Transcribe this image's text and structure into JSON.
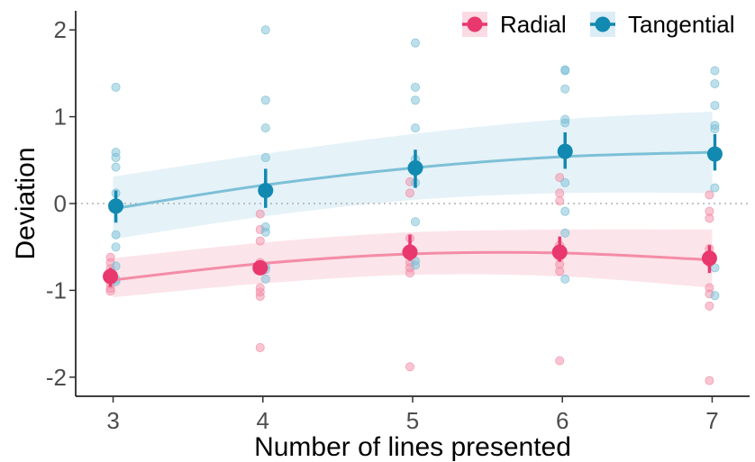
{
  "chart_data": {
    "type": "line",
    "xlabel": "Number of lines presented",
    "ylabel": "Deviation",
    "x_ticks": [
      3,
      4,
      5,
      6,
      7
    ],
    "y_ticks": [
      -2,
      -1,
      0,
      1,
      2
    ],
    "xlim": [
      2.75,
      7.25
    ],
    "ylim": [
      -2.22,
      2.22
    ],
    "reference_line_y": 0,
    "grid": false,
    "legend_position": "top-right",
    "series": [
      {
        "name": "Radial",
        "color": "#E8386D",
        "light_color": "#F48CA6",
        "band_color": "#FADBE3",
        "x": [
          3,
          4,
          5,
          6,
          7
        ],
        "mean": [
          -0.84,
          -0.74,
          -0.56,
          -0.56,
          -0.63
        ],
        "err_low": [
          -0.96,
          -0.82,
          -0.66,
          -0.67,
          -0.8
        ],
        "err_high": [
          -0.74,
          -0.67,
          -0.36,
          -0.38,
          -0.48
        ],
        "fit": [
          -0.88,
          -0.69,
          -0.58,
          -0.57,
          -0.65
        ],
        "band_low": [
          -1.08,
          -0.92,
          -0.82,
          -0.84,
          -0.97
        ],
        "band_high": [
          -0.63,
          -0.45,
          -0.33,
          -0.3,
          -0.3
        ],
        "points": [
          [
            3,
            -0.62
          ],
          [
            3,
            -0.68
          ],
          [
            3,
            -0.75
          ],
          [
            3,
            -0.82
          ],
          [
            3,
            -0.88
          ],
          [
            3,
            -0.93
          ],
          [
            3,
            -0.98
          ],
          [
            3,
            -1.01
          ],
          [
            4,
            -0.12
          ],
          [
            4,
            -0.3
          ],
          [
            4,
            -0.43
          ],
          [
            4,
            -0.68
          ],
          [
            4,
            -0.73
          ],
          [
            4,
            -0.97
          ],
          [
            4,
            -1.02
          ],
          [
            4,
            -1.07
          ],
          [
            4,
            -1.66
          ],
          [
            5,
            0.25
          ],
          [
            5,
            0.12
          ],
          [
            5,
            -0.4
          ],
          [
            5,
            -0.52
          ],
          [
            5,
            -0.68
          ],
          [
            5,
            -0.74
          ],
          [
            5,
            -0.8
          ],
          [
            5,
            -1.88
          ],
          [
            6,
            0.3
          ],
          [
            6,
            0.12
          ],
          [
            6,
            0.03
          ],
          [
            6,
            -0.48
          ],
          [
            6,
            -0.62
          ],
          [
            6,
            -0.7
          ],
          [
            6,
            -0.78
          ],
          [
            6,
            -1.81
          ],
          [
            7,
            0.1
          ],
          [
            7,
            -0.09
          ],
          [
            7,
            -0.17
          ],
          [
            7,
            -0.52
          ],
          [
            7,
            -0.68
          ],
          [
            7,
            -0.97
          ],
          [
            7,
            -1.04
          ],
          [
            7,
            -1.18
          ],
          [
            7,
            -2.04
          ]
        ]
      },
      {
        "name": "Tangential",
        "color": "#1289B1",
        "light_color": "#7CC0D6",
        "band_color": "#DCEDF6",
        "x": [
          3,
          4,
          5,
          6,
          7
        ],
        "mean": [
          -0.03,
          0.15,
          0.41,
          0.6,
          0.57
        ],
        "err_low": [
          -0.22,
          -0.05,
          0.18,
          0.4,
          0.38
        ],
        "err_high": [
          0.15,
          0.4,
          0.62,
          0.82,
          0.8
        ],
        "fit": [
          -0.06,
          0.21,
          0.41,
          0.54,
          0.59
        ],
        "band_low": [
          -0.41,
          -0.15,
          0.04,
          0.12,
          0.12
        ],
        "band_high": [
          0.31,
          0.57,
          0.8,
          0.97,
          1.06
        ],
        "points": [
          [
            3,
            1.34
          ],
          [
            3,
            0.59
          ],
          [
            3,
            0.53
          ],
          [
            3,
            0.42
          ],
          [
            3,
            0.12
          ],
          [
            3,
            -0.36
          ],
          [
            3,
            -0.5
          ],
          [
            3,
            -0.72
          ],
          [
            3,
            -0.87
          ],
          [
            3,
            -0.9
          ],
          [
            4,
            2.0
          ],
          [
            4,
            1.19
          ],
          [
            4,
            0.87
          ],
          [
            4,
            0.53
          ],
          [
            4,
            -0.27
          ],
          [
            4,
            -0.33
          ],
          [
            4,
            -0.72
          ],
          [
            4,
            -0.76
          ],
          [
            4,
            -0.87
          ],
          [
            5,
            1.85
          ],
          [
            5,
            1.34
          ],
          [
            5,
            1.19
          ],
          [
            5,
            0.87
          ],
          [
            5,
            0.51
          ],
          [
            5,
            0.42
          ],
          [
            5,
            0.24
          ],
          [
            5,
            -0.21
          ],
          [
            5,
            -0.66
          ],
          [
            5,
            -0.71
          ],
          [
            6,
            1.54
          ],
          [
            6,
            1.53
          ],
          [
            6,
            1.32
          ],
          [
            6,
            0.97
          ],
          [
            6,
            0.93
          ],
          [
            6,
            0.6
          ],
          [
            6,
            0.24
          ],
          [
            6,
            -0.09
          ],
          [
            6,
            -0.34
          ],
          [
            6,
            -0.87
          ],
          [
            7,
            1.53
          ],
          [
            7,
            1.38
          ],
          [
            7,
            1.13
          ],
          [
            7,
            0.9
          ],
          [
            7,
            0.86
          ],
          [
            7,
            0.18
          ],
          [
            7,
            -0.74
          ],
          [
            7,
            -1.06
          ]
        ]
      }
    ]
  }
}
